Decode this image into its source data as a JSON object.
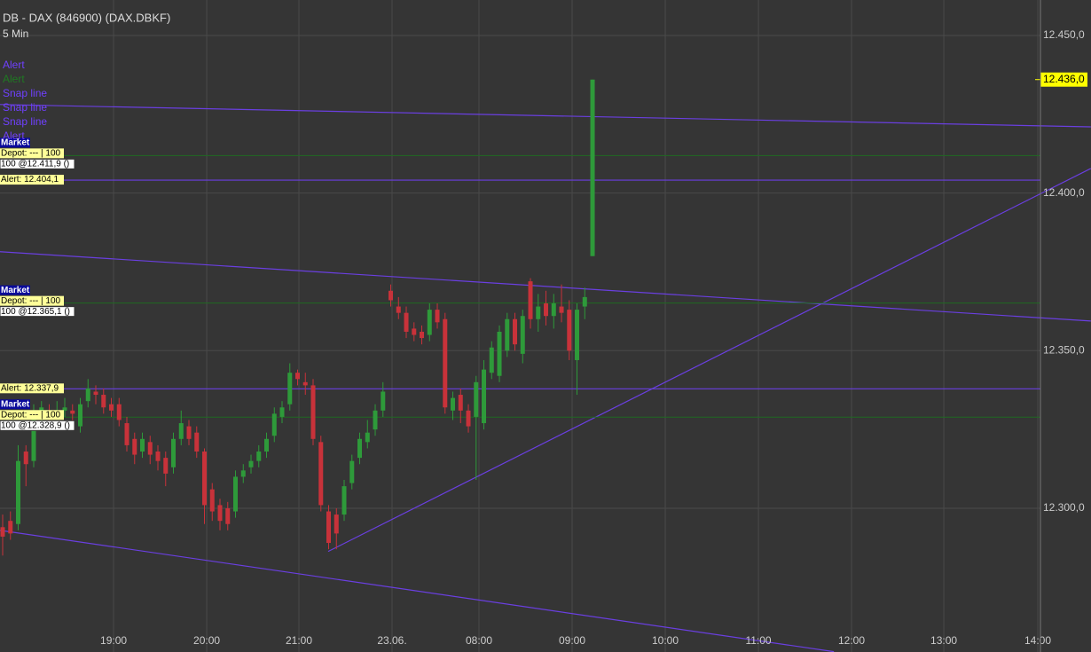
{
  "chart_data": {
    "type": "candlestick",
    "title": "DB - DAX (846900) (DAX.DBKF)",
    "subtitle": "5 Min",
    "up_color": "#2e9a3a",
    "down_color": "#c8323a",
    "grid": true,
    "ylim": [
      12254.4,
      12461.25
    ],
    "yticks": [
      {
        "value": 12300,
        "label": "12.300,0"
      },
      {
        "value": 12350,
        "label": "12.350,0"
      },
      {
        "value": 12400,
        "label": "12.400,0"
      },
      {
        "value": 12450,
        "label": "12.450,0"
      }
    ],
    "xlim": [
      -0.343,
      133.71
    ],
    "xticks": [
      {
        "value": 14.29,
        "label": "19:00"
      },
      {
        "value": 26.29,
        "label": "20:00"
      },
      {
        "value": 38.17,
        "label": "21:00"
      },
      {
        "value": 50.17,
        "label": "23.06."
      },
      {
        "value": 61.37,
        "label": "08:00"
      },
      {
        "value": 73.37,
        "label": "09:00"
      },
      {
        "value": 85.37,
        "label": "10:00"
      },
      {
        "value": 97.37,
        "label": "11:00"
      },
      {
        "value": 109.37,
        "label": "12:00"
      },
      {
        "value": 121.26,
        "label": "13:00"
      },
      {
        "value": 133.37,
        "label": "14:00"
      }
    ],
    "candles": {
      "open": [
        12294,
        12296,
        12295,
        12318,
        12315,
        12329,
        12331,
        12330,
        12331,
        12331,
        12326,
        12334,
        12337,
        12336,
        12333,
        12333,
        12327,
        12322,
        12318,
        12321,
        12318,
        12316,
        12313,
        12322,
        12326,
        12324,
        12318,
        12306,
        12301,
        12300,
        12299,
        12310,
        12313,
        12315,
        12318,
        12323,
        12329,
        12333,
        12343,
        12340,
        12339,
        12321,
        12299,
        12298,
        12298,
        12308,
        12316,
        12321,
        12325,
        12331,
        12369,
        12364,
        12362,
        12357,
        12356,
        12355,
        12363,
        12360,
        12331,
        12336,
        12331,
        12329,
        12327,
        12343,
        12342,
        12350,
        12360,
        12349,
        12372,
        12360,
        12365,
        12361,
        12364,
        12363,
        12347,
        12364,
        12380
      ],
      "high": [
        12298,
        12299,
        12320,
        12320,
        12333,
        12334,
        12333,
        12334,
        12335,
        12333,
        12335,
        12341,
        12339,
        12338,
        12335,
        12335,
        12329,
        12324,
        12324,
        12323,
        12320,
        12318,
        12324,
        12331,
        12328,
        12326,
        12319,
        12308,
        12303,
        12302,
        12312,
        12314,
        12317,
        12320,
        12324,
        12332,
        12334,
        12346,
        12344,
        12343,
        12341,
        12323,
        12301,
        12300,
        12309,
        12317,
        12324,
        12328,
        12333,
        12340,
        12371,
        12367,
        12364,
        12359,
        12358,
        12365,
        12365,
        12362,
        12337,
        12338,
        12333,
        12342,
        12347,
        12353,
        12358,
        12362,
        12362,
        12363,
        12373,
        12368,
        12369,
        12368,
        12371,
        12366,
        12365,
        12370,
        12436
      ],
      "low": [
        12285,
        12290,
        12293,
        12307,
        12313,
        12327,
        12328,
        12328,
        12329,
        12326,
        12324,
        12332,
        12333,
        12330,
        12329,
        12326,
        12318,
        12314,
        12316,
        12314,
        12312,
        12307,
        12311,
        12320,
        12320,
        12316,
        12295,
        12296,
        12293,
        12293,
        12297,
        12308,
        12311,
        12313,
        12316,
        12321,
        12327,
        12331,
        12339,
        12336,
        12320,
        12299,
        12287,
        12287,
        12296,
        12306,
        12314,
        12319,
        12323,
        12329,
        12364,
        12360,
        12354,
        12353,
        12352,
        12353,
        12357,
        12330,
        12328,
        12327,
        12324,
        12309,
        12325,
        12341,
        12340,
        12348,
        12350,
        12346,
        12357,
        12356,
        12358,
        12357,
        12359,
        12347,
        12336,
        12360,
        12380
      ],
      "close": [
        12291,
        12292,
        12315,
        12314,
        12329,
        12332,
        12330,
        12331,
        12332,
        12330,
        12333,
        12338,
        12336,
        12332,
        12331,
        12328,
        12320,
        12317,
        12322,
        12317,
        12315,
        12311,
        12322,
        12327,
        12322,
        12318,
        12301,
        12299,
        12296,
        12295,
        12310,
        12312,
        12315,
        12318,
        12322,
        12330,
        12332,
        12343,
        12341,
        12339,
        12322,
        12301,
        12289,
        12292,
        12307,
        12315,
        12322,
        12324,
        12331,
        12337,
        12366,
        12362,
        12356,
        12355,
        12354,
        12363,
        12359,
        12332,
        12335,
        12331,
        12326,
        12340,
        12344,
        12351,
        12356,
        12360,
        12352,
        12361,
        12360,
        12364,
        12361,
        12365,
        12362,
        12350,
        12363,
        12367,
        12436
      ]
    },
    "last_price": {
      "value": 12436,
      "label": "12.436,0"
    },
    "trendlines": [
      {
        "color": "#6a3fe0",
        "x": [
          -0.343,
          140.2
        ],
        "y": [
          12428.1,
          12421.0
        ]
      },
      {
        "color": "#6a3fe0",
        "x": [
          -0.343,
          140.2
        ],
        "y": [
          12381.4,
          12359.4
        ]
      },
      {
        "color": "#6a3fe0",
        "x": [
          41.94,
          140.2
        ],
        "y": [
          12286.3,
          12407.8
        ]
      },
      {
        "color": "#6a3fe0",
        "x": [
          -0.343,
          107.1
        ],
        "y": [
          12293.0,
          12254.5
        ]
      }
    ],
    "alerts": [
      {
        "value": 12404.1,
        "label": "Alert: 12.404,1",
        "color": "#6a3fe0"
      },
      {
        "value": 12337.9,
        "label": "Alert: 12.337,9",
        "color": "#6a3fe0"
      }
    ],
    "orders": [
      {
        "value": 12411.9,
        "market": "Market",
        "depot": "Depot: --- | 100",
        "label": "100 @12.411,9 ()",
        "color": "#1f6a22"
      },
      {
        "value": 12365.1,
        "market": "Market",
        "depot": "Depot: --- | 100",
        "label": "100 @12.365,1 ()",
        "color": "#1f6a22"
      },
      {
        "value": 12328.9,
        "market": "Market",
        "depot": "Depot: --- | 100",
        "label": "100 @12.328,9 ()",
        "color": "#1f6a22"
      }
    ],
    "side_labels": [
      {
        "text": "Alert",
        "color": "#7040ff"
      },
      {
        "text": "Alert",
        "color": "#1f7a22"
      },
      {
        "text": "Snap line",
        "color": "#7040ff"
      },
      {
        "text": "Snap line",
        "color": "#7040ff"
      },
      {
        "text": "Snap line",
        "color": "#7040ff"
      },
      {
        "text": "Alert",
        "color": "#7040ff"
      }
    ]
  }
}
